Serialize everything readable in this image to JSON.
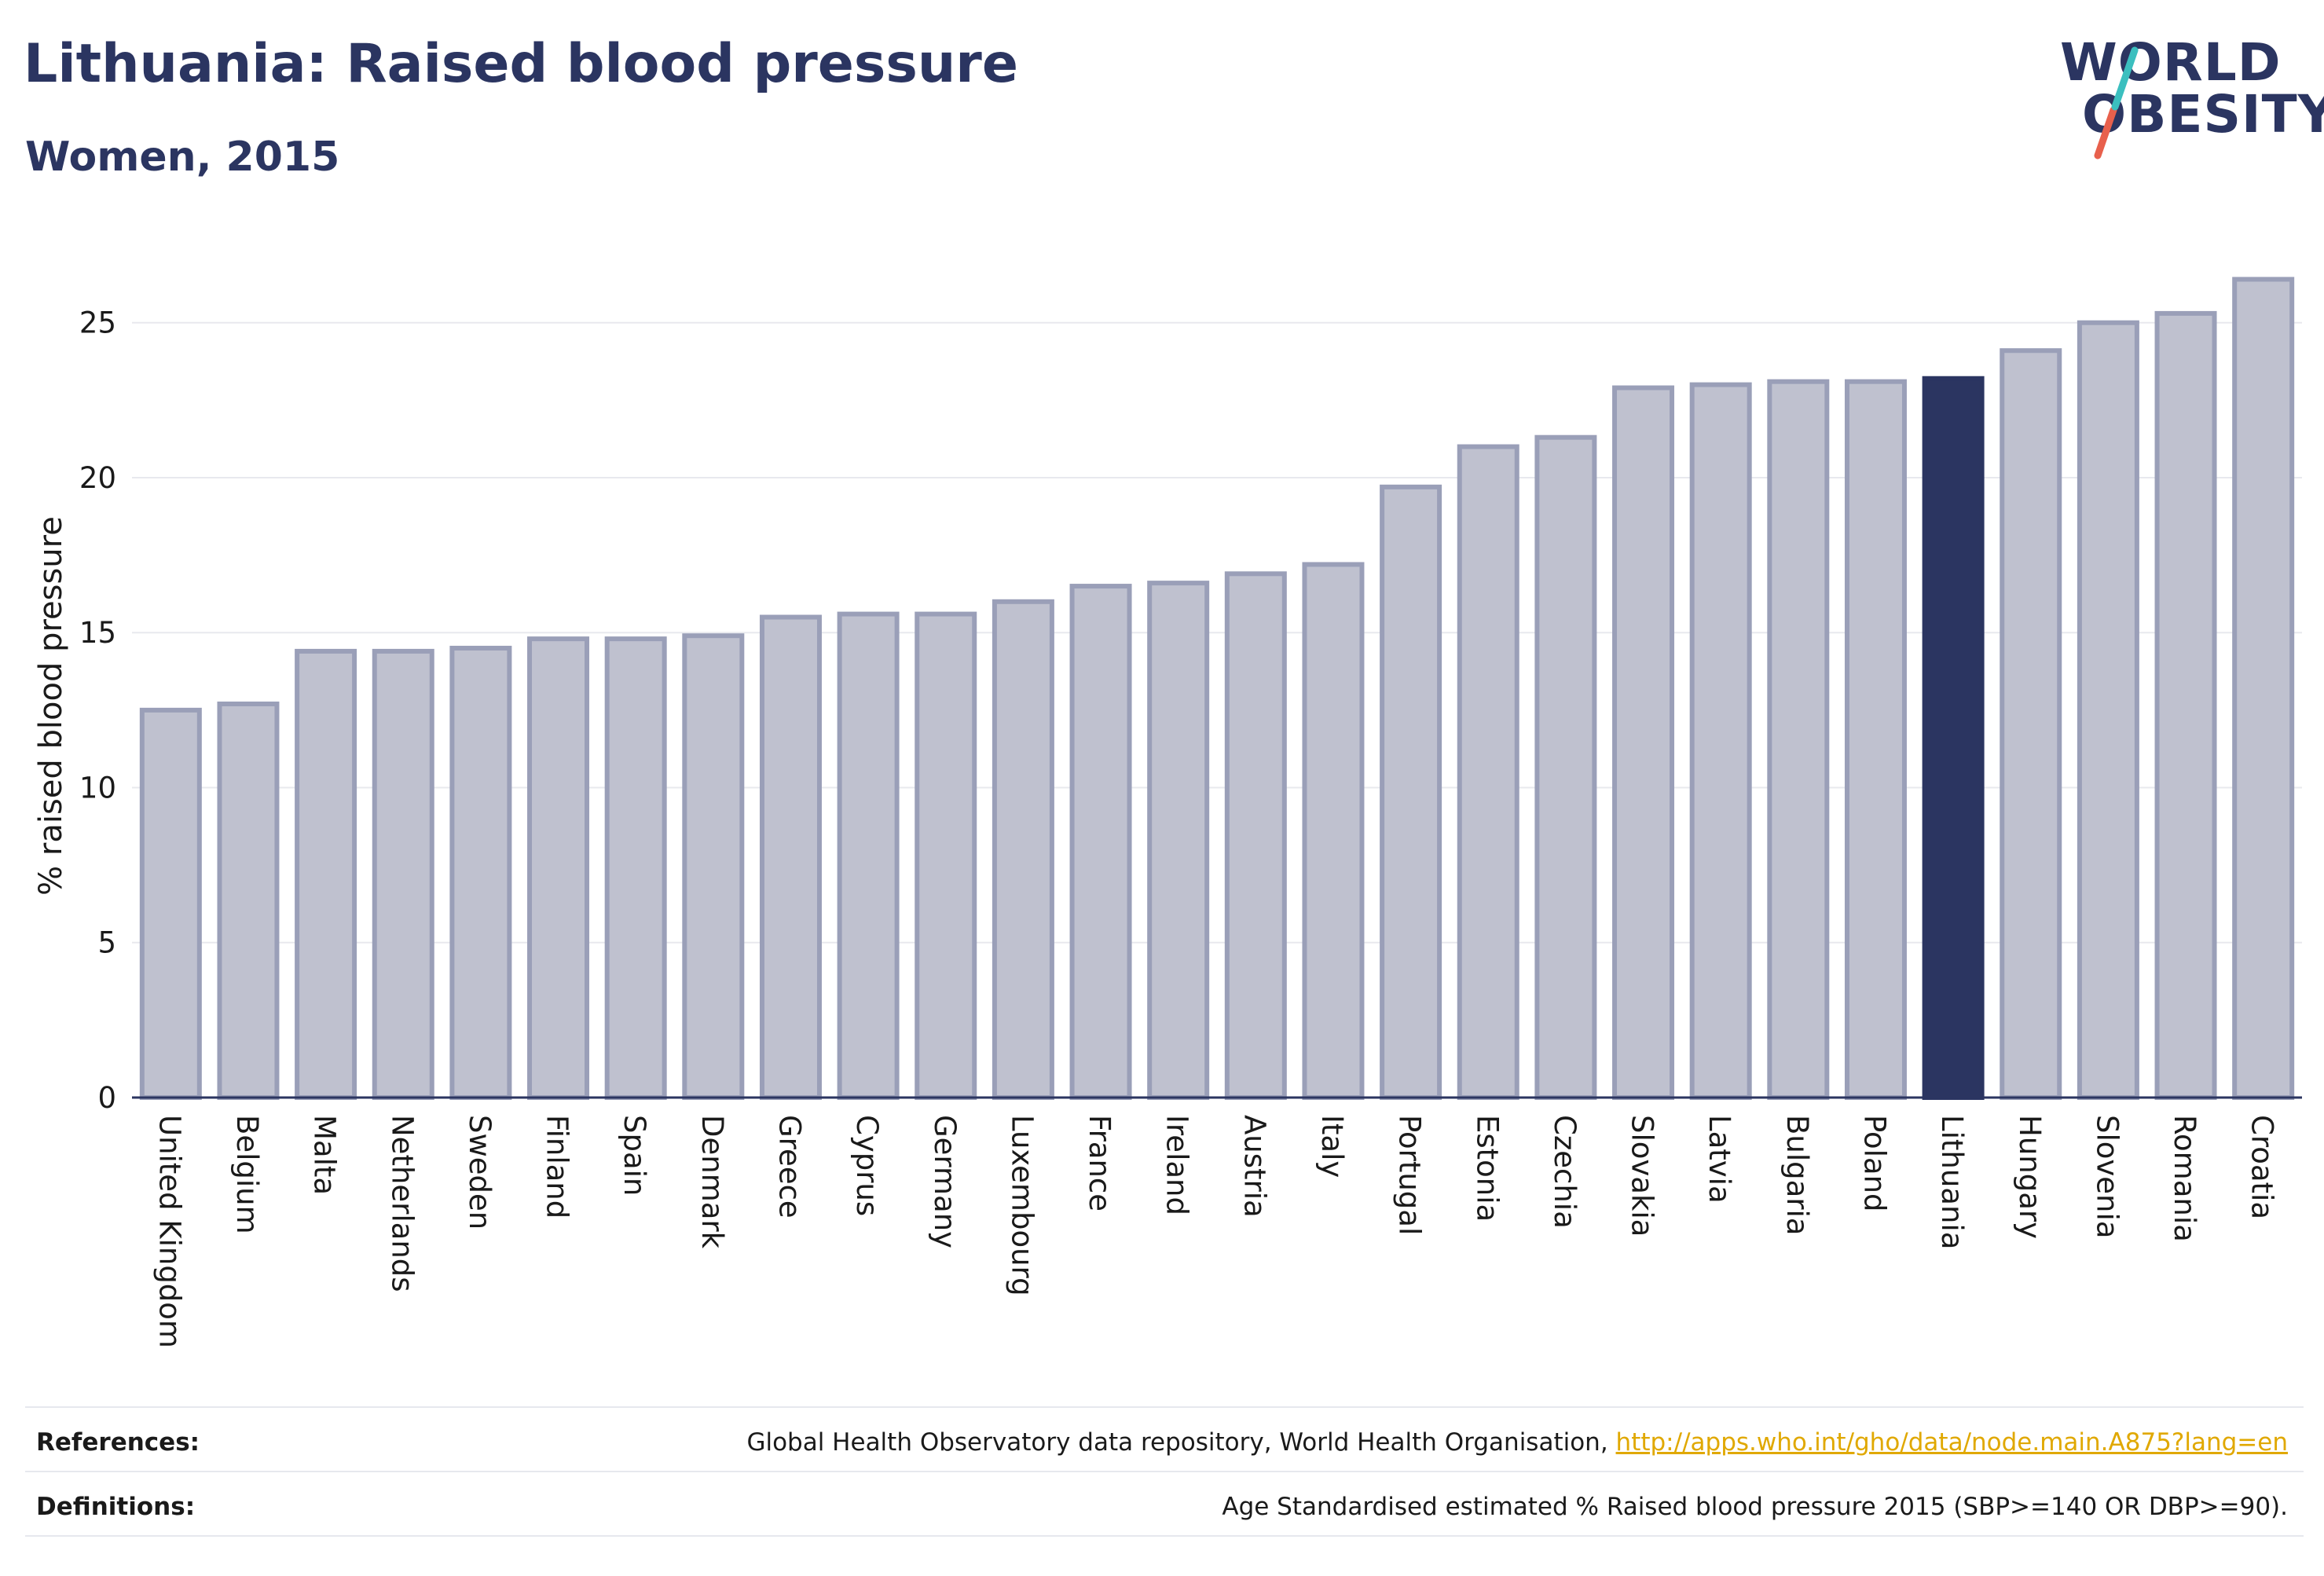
{
  "header": {
    "title": "Lithuania: Raised blood pressure",
    "subtitle": "Women, 2015"
  },
  "logo": {
    "line1": "WORLD",
    "line2": "OBESITY",
    "colors": {
      "text": "#2b3561",
      "slash_top": "#3bbfbf",
      "slash_bottom": "#e8604c"
    }
  },
  "colors": {
    "bar_fill": "#bfc1cf",
    "bar_stroke": "#9a9fb8",
    "highlight": "#2b3561",
    "grid": "#e8e9ee",
    "axis": "#2b3561"
  },
  "chart_data": {
    "type": "bar",
    "title": "",
    "xlabel": "",
    "ylabel": "% raised blood pressure",
    "ylim": [
      0,
      27.3
    ],
    "yticks": [
      0,
      5,
      10,
      15,
      20,
      25
    ],
    "grid": true,
    "highlight": "Lithuania",
    "categories": [
      "United Kingdom",
      "Belgium",
      "Malta",
      "Netherlands",
      "Sweden",
      "Finland",
      "Spain",
      "Denmark",
      "Greece",
      "Cyprus",
      "Germany",
      "Luxembourg",
      "France",
      "Ireland",
      "Austria",
      "Italy",
      "Portugal",
      "Estonia",
      "Czechia",
      "Slovakia",
      "Latvia",
      "Bulgaria",
      "Poland",
      "Lithuania",
      "Hungary",
      "Slovenia",
      "Romania",
      "Croatia"
    ],
    "values": [
      12.5,
      12.7,
      14.4,
      14.4,
      14.5,
      14.8,
      14.8,
      14.9,
      15.5,
      15.6,
      15.6,
      16.0,
      16.5,
      16.6,
      16.9,
      17.2,
      19.7,
      21.0,
      21.3,
      22.9,
      23.0,
      23.1,
      23.1,
      23.2,
      24.1,
      25.0,
      25.3,
      26.4
    ]
  },
  "footer": {
    "references_label": "References:",
    "references_text": "Global Health Observatory data repository, World Health Organisation, ",
    "references_link": "http://apps.who.int/gho/data/node.main.A875?lang=en",
    "definitions_label": "Definitions:",
    "definitions_text": "Age Standardised estimated % Raised blood pressure 2015 (SBP>=140 OR DBP>=90)."
  }
}
